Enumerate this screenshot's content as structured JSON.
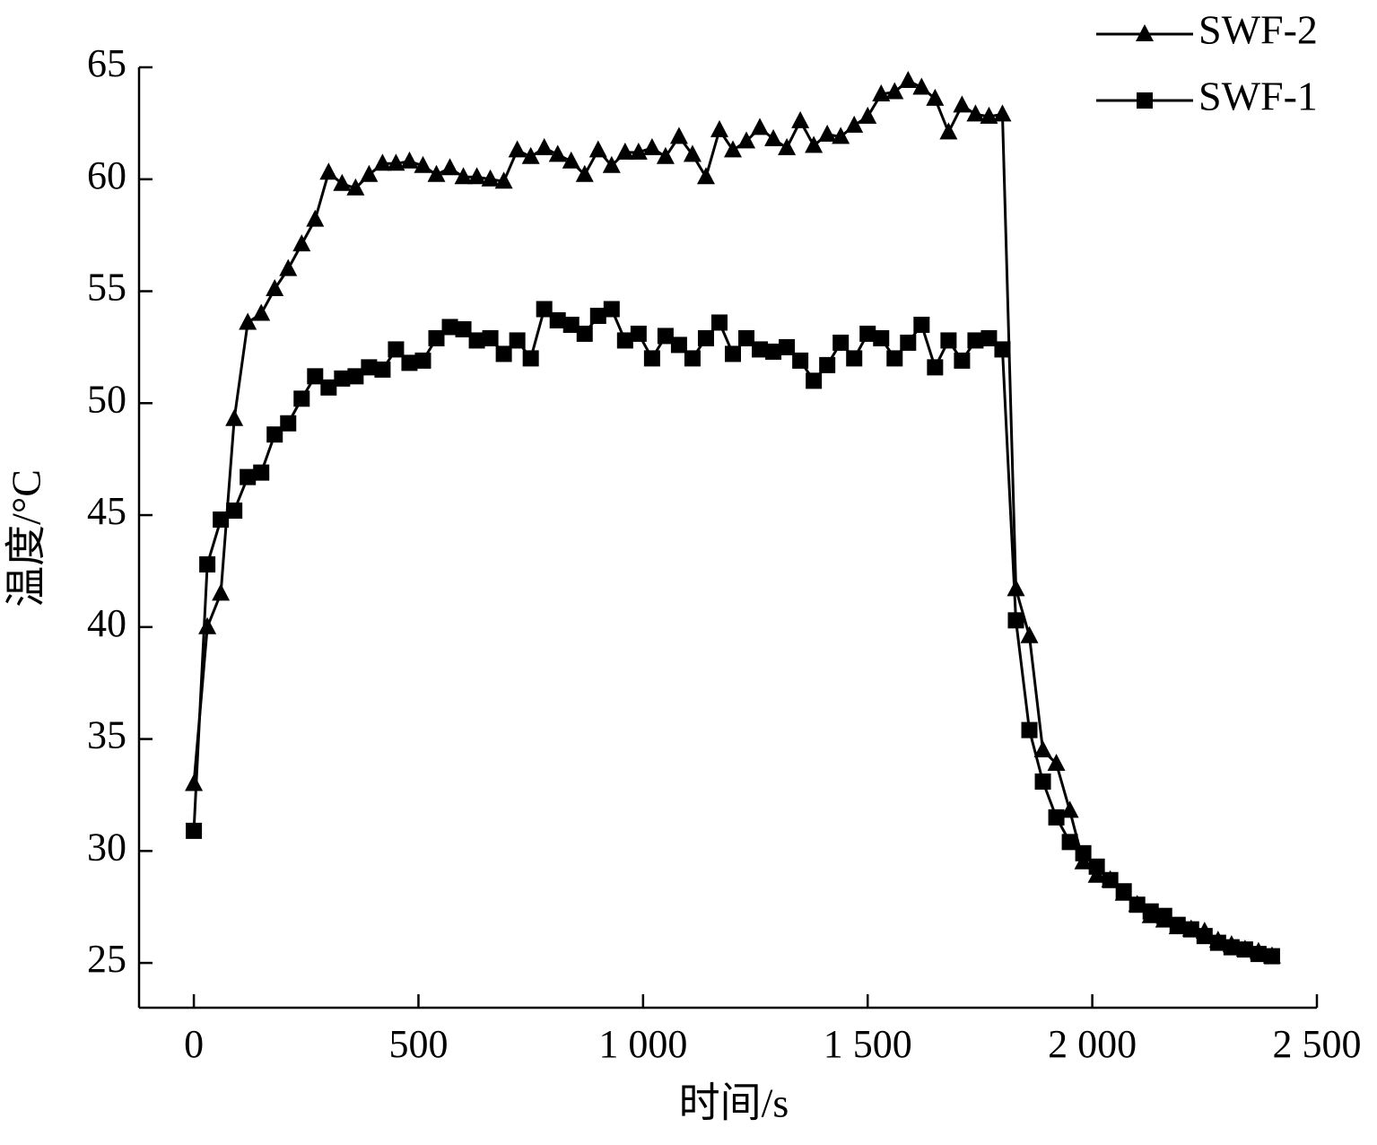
{
  "chart_data": {
    "type": "line",
    "xlabel": "时间/s",
    "ylabel": "温度/°C",
    "x": [
      0,
      30,
      60,
      90,
      120,
      150,
      180,
      210,
      240,
      270,
      300,
      330,
      360,
      390,
      420,
      450,
      480,
      510,
      540,
      570,
      600,
      630,
      660,
      690,
      720,
      750,
      780,
      810,
      840,
      870,
      900,
      930,
      960,
      990,
      1020,
      1050,
      1080,
      1110,
      1140,
      1170,
      1200,
      1230,
      1260,
      1290,
      1320,
      1350,
      1380,
      1410,
      1440,
      1470,
      1500,
      1530,
      1560,
      1590,
      1620,
      1650,
      1680,
      1710,
      1740,
      1770,
      1800,
      1830,
      1860,
      1890,
      1920,
      1950,
      1980,
      2010,
      2040,
      2070,
      2100,
      2130,
      2160,
      2190,
      2220,
      2250,
      2280,
      2310,
      2340,
      2370,
      2400
    ],
    "series": [
      {
        "name": "SWF-2",
        "color": "#000000",
        "marker": "triangle",
        "values": [
          33,
          40,
          41.5,
          49.3,
          53.6,
          54.0,
          55.1,
          56.0,
          57.1,
          58.2,
          60.3,
          59.8,
          59.6,
          60.2,
          60.7,
          60.7,
          60.8,
          60.6,
          60.2,
          60.5,
          60.1,
          60.1,
          60.0,
          59.9,
          61.3,
          61.0,
          61.4,
          61.1,
          60.8,
          60.2,
          61.3,
          60.6,
          61.2,
          61.2,
          61.4,
          61.0,
          61.9,
          61.1,
          60.1,
          62.2,
          61.3,
          61.7,
          62.3,
          61.8,
          61.4,
          62.6,
          61.5,
          62.0,
          61.9,
          62.4,
          62.8,
          63.8,
          63.9,
          64.4,
          64.1,
          63.6,
          62.1,
          63.3,
          62.9,
          62.8,
          62.9,
          41.7,
          39.6,
          34.5,
          33.9,
          31.8,
          29.5,
          28.9,
          28.7,
          28.1,
          27.6,
          27.1,
          26.9,
          26.6,
          26.5,
          26.4,
          26.0,
          25.8,
          25.6,
          25.5,
          25.3
        ]
      },
      {
        "name": "SWF-1",
        "color": "#000000",
        "marker": "square",
        "values": [
          30.9,
          42.8,
          44.8,
          45.2,
          46.7,
          46.9,
          48.6,
          49.1,
          50.2,
          51.2,
          50.7,
          51.1,
          51.2,
          51.6,
          51.5,
          52.4,
          51.8,
          51.9,
          52.9,
          53.4,
          53.3,
          52.8,
          52.9,
          52.2,
          52.8,
          52.0,
          54.2,
          53.7,
          53.5,
          53.1,
          53.9,
          54.2,
          52.8,
          53.1,
          52.0,
          53.0,
          52.6,
          52.0,
          52.9,
          53.6,
          52.2,
          52.9,
          52.4,
          52.3,
          52.5,
          51.9,
          51.0,
          51.7,
          52.7,
          52.0,
          53.1,
          52.9,
          52.0,
          52.7,
          53.5,
          51.6,
          52.8,
          51.9,
          52.8,
          52.9,
          52.4,
          40.3,
          35.4,
          33.1,
          31.5,
          30.4,
          29.9,
          29.3,
          28.7,
          28.2,
          27.6,
          27.3,
          27.1,
          26.7,
          26.5,
          26.2,
          25.9,
          25.7,
          25.6,
          25.4,
          25.3
        ]
      }
    ],
    "xlim": [
      -122,
      2500
    ],
    "xticks": [
      0,
      500,
      {
        "value": 1000,
        "label": "1 000"
      },
      {
        "value": 1500,
        "label": "1 500"
      },
      {
        "value": 2000,
        "label": "2 000"
      },
      {
        "value": 2500,
        "label": "2 500"
      }
    ],
    "ylim": [
      23,
      65
    ],
    "yticks": [
      25,
      30,
      35,
      40,
      45,
      50,
      55,
      60,
      65
    ],
    "legend": "top-right",
    "grid": false
  }
}
